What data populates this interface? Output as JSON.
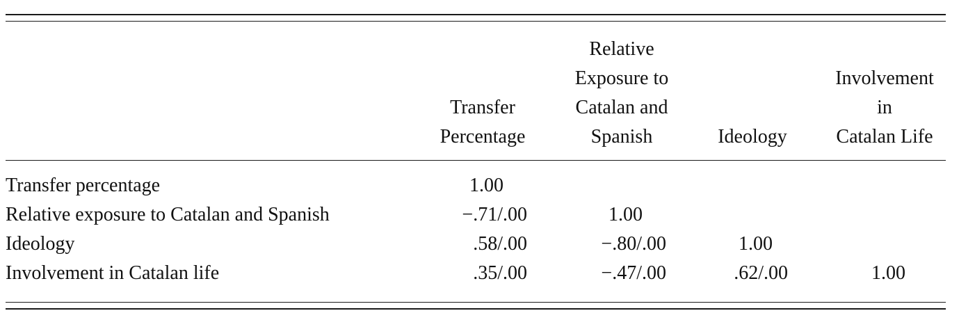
{
  "table": {
    "columns": [
      {
        "lines": [
          "Transfer",
          "Percentage"
        ]
      },
      {
        "lines": [
          "Relative",
          "Exposure to",
          "Catalan and",
          "Spanish"
        ]
      },
      {
        "lines": [
          "Ideology"
        ]
      },
      {
        "lines": [
          "Involvement",
          "in",
          "Catalan Life"
        ]
      }
    ],
    "rows": [
      {
        "label": "Transfer percentage",
        "cells": [
          "1.00",
          "",
          "",
          ""
        ]
      },
      {
        "label": "Relative exposure to Catalan and Spanish",
        "cells": [
          "−.71/.00",
          "1.00",
          "",
          ""
        ]
      },
      {
        "label": "Ideology",
        "cells": [
          ".58/.00",
          "−.80/.00",
          "1.00",
          ""
        ]
      },
      {
        "label": "Involvement in Catalan life",
        "cells": [
          ".35/.00",
          "−.47/.00",
          ".62/.00",
          "1.00"
        ]
      }
    ]
  }
}
